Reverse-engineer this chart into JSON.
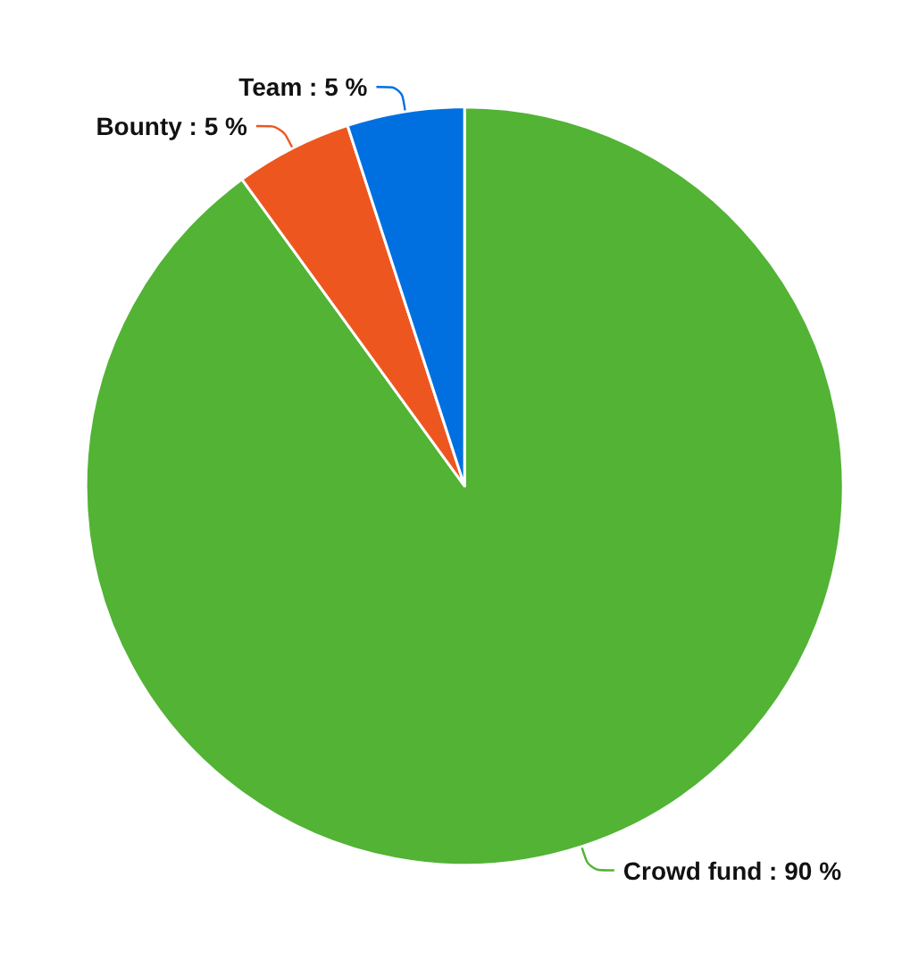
{
  "chart_data": {
    "type": "pie",
    "categories": [
      "Crowd fund",
      "Bounty",
      "Team"
    ],
    "values": [
      90,
      5,
      5
    ],
    "colors": [
      "#52b335",
      "#ee5620",
      "#0070e0"
    ],
    "value_labels": [
      "90 %",
      "5 %",
      "5 %"
    ],
    "legend": false
  }
}
